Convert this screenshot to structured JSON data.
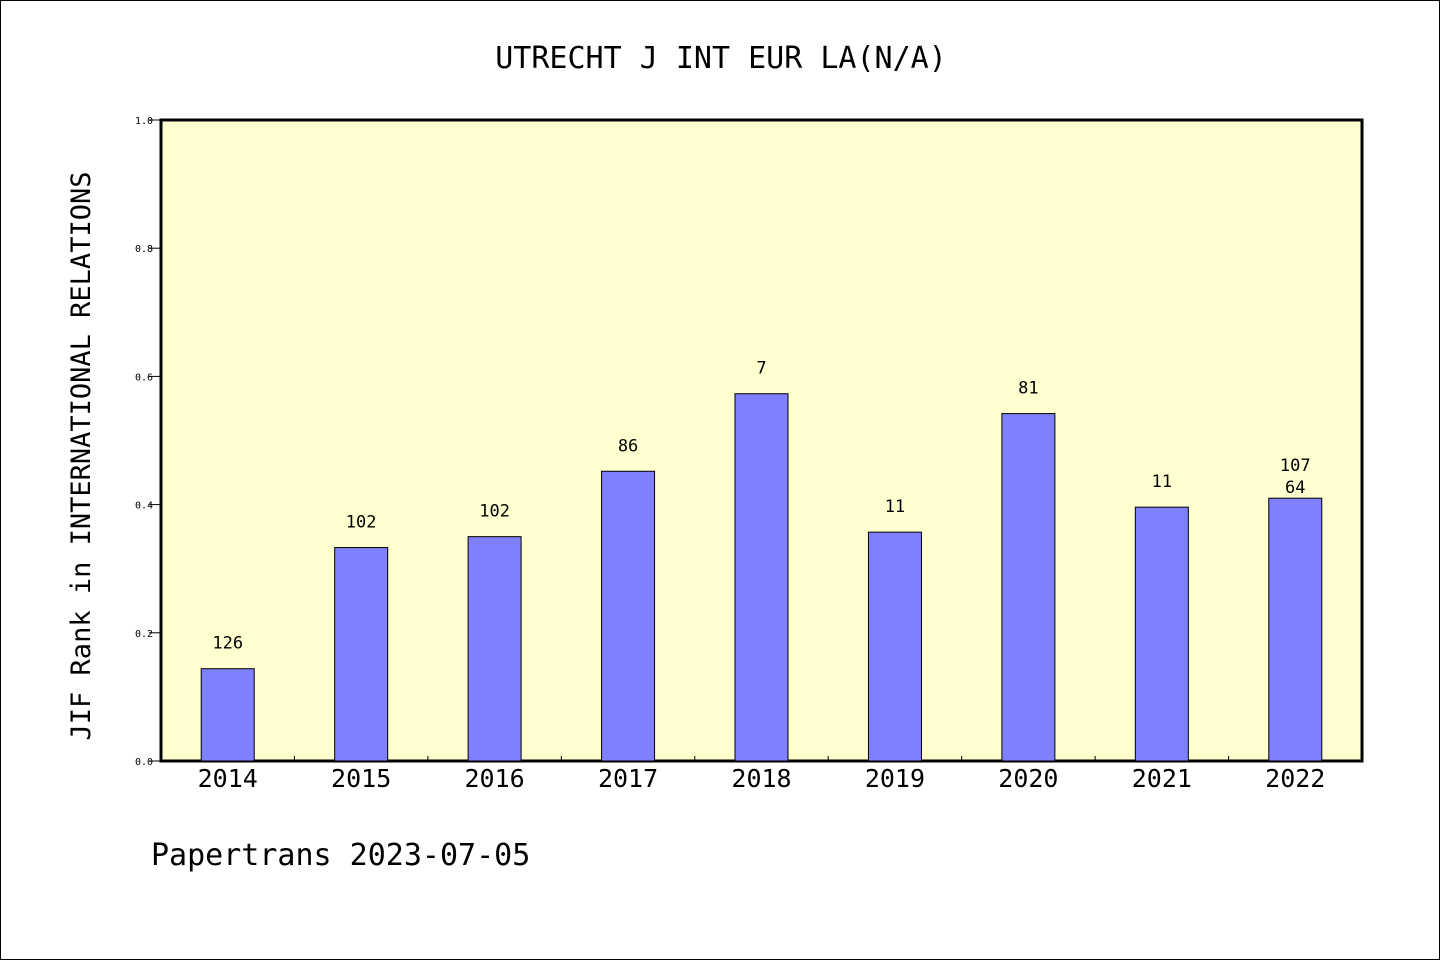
{
  "chart_data": {
    "type": "bar",
    "title": "UTRECHT J INT EUR LA(N/A)",
    "ylabel": "JIF Rank in INTERNATIONAL RELATIONS",
    "xlabel": "",
    "ylim": [
      0,
      1.0
    ],
    "yticks": [
      "0.0",
      "0.2",
      "0.4",
      "0.6",
      "0.8",
      "1.0"
    ],
    "categories": [
      "2014",
      "2015",
      "2016",
      "2017",
      "2018",
      "2019",
      "2020",
      "2021",
      "2022"
    ],
    "values": [
      0.144,
      0.333,
      0.35,
      0.452,
      0.573,
      0.357,
      0.542,
      0.396,
      0.41
    ],
    "labels_top": [
      "126",
      "102",
      "102",
      "86",
      "7",
      "11",
      "81",
      "11",
      "107"
    ],
    "labels_bottom": [
      "",
      "",
      "",
      "",
      "",
      "",
      "",
      "",
      "64"
    ],
    "grid": false,
    "colors": {
      "plot_bg": "#ffffd0",
      "bar": "#8080ff",
      "bar_stroke": "#000000"
    }
  },
  "footer": "Papertrans 2023-07-05"
}
